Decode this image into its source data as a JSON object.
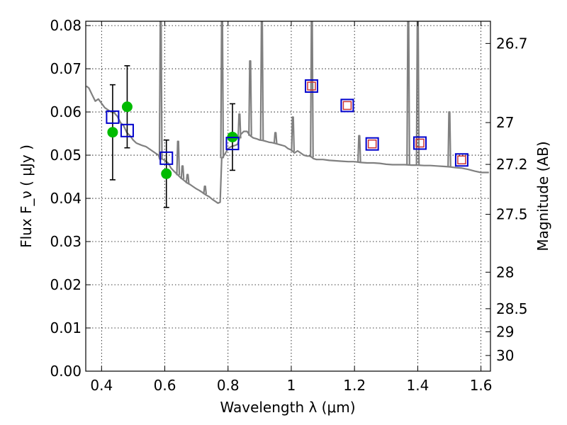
{
  "chart_data": {
    "type": "scatter",
    "xlabel": "Wavelength λ (μm)",
    "ylabel": "Flux F_ν ( μJy )",
    "y2label": "Magnitude (AB)",
    "xlim": [
      0.35,
      1.63
    ],
    "ylim": [
      0.0,
      0.081
    ],
    "grid": true,
    "x_ticks": [
      {
        "value": 0.4,
        "label": "0.4"
      },
      {
        "value": 0.6,
        "label": "0.6"
      },
      {
        "value": 0.8,
        "label": "0.8"
      },
      {
        "value": 1.0,
        "label": "1"
      },
      {
        "value": 1.2,
        "label": "1.2"
      },
      {
        "value": 1.4,
        "label": "1.4"
      },
      {
        "value": 1.6,
        "label": "1.6"
      }
    ],
    "y_ticks": [
      {
        "value": 0.0,
        "label": "0.00"
      },
      {
        "value": 0.01,
        "label": "0.01"
      },
      {
        "value": 0.02,
        "label": "0.02"
      },
      {
        "value": 0.03,
        "label": "0.03"
      },
      {
        "value": 0.04,
        "label": "0.04"
      },
      {
        "value": 0.05,
        "label": "0.05"
      },
      {
        "value": 0.06,
        "label": "0.06"
      },
      {
        "value": 0.07,
        "label": "0.07"
      },
      {
        "value": 0.08,
        "label": "0.08"
      }
    ],
    "y2_ticks": [
      {
        "value": 26.7,
        "label": "26.7"
      },
      {
        "value": 27.0,
        "label": "27"
      },
      {
        "value": 27.2,
        "label": "27.2"
      },
      {
        "value": 27.5,
        "label": "27.5"
      },
      {
        "value": 28.0,
        "label": "28"
      },
      {
        "value": 28.5,
        "label": "28.5"
      },
      {
        "value": 29.0,
        "label": "29"
      },
      {
        "value": 30.0,
        "label": "30"
      }
    ],
    "colors": {
      "model": "#808080",
      "observed": "#00bb00",
      "model_box": "#0000cc",
      "inner_box": "#cc3333",
      "errorbar": "#000000"
    },
    "model_spectrum": [
      [
        0.352,
        0.066
      ],
      [
        0.36,
        0.0655
      ],
      [
        0.37,
        0.064
      ],
      [
        0.38,
        0.0625
      ],
      [
        0.39,
        0.063
      ],
      [
        0.4,
        0.062
      ],
      [
        0.41,
        0.061
      ],
      [
        0.42,
        0.0605
      ],
      [
        0.43,
        0.06
      ],
      [
        0.44,
        0.0598
      ],
      [
        0.45,
        0.059
      ],
      [
        0.46,
        0.0575
      ],
      [
        0.47,
        0.0568
      ],
      [
        0.48,
        0.0552
      ],
      [
        0.49,
        0.0545
      ],
      [
        0.5,
        0.0535
      ],
      [
        0.51,
        0.0528
      ],
      [
        0.52,
        0.0525
      ],
      [
        0.53,
        0.0522
      ],
      [
        0.54,
        0.052
      ],
      [
        0.55,
        0.0515
      ],
      [
        0.56,
        0.051
      ],
      [
        0.57,
        0.0505
      ],
      [
        0.58,
        0.05
      ],
      [
        0.585,
        0.049
      ],
      [
        0.59,
        0.0492
      ],
      [
        0.6,
        0.0488
      ],
      [
        0.61,
        0.0482
      ],
      [
        0.62,
        0.047
      ],
      [
        0.63,
        0.0462
      ],
      [
        0.64,
        0.0455
      ],
      [
        0.65,
        0.0448
      ],
      [
        0.66,
        0.0442
      ],
      [
        0.67,
        0.0436
      ],
      [
        0.68,
        0.0432
      ],
      [
        0.69,
        0.0427
      ],
      [
        0.7,
        0.0422
      ],
      [
        0.71,
        0.0418
      ],
      [
        0.72,
        0.0413
      ],
      [
        0.73,
        0.0408
      ],
      [
        0.74,
        0.0404
      ],
      [
        0.75,
        0.0398
      ],
      [
        0.76,
        0.0393
      ],
      [
        0.768,
        0.0389
      ],
      [
        0.775,
        0.0391
      ],
      [
        0.78,
        0.0492
      ],
      [
        0.79,
        0.0502
      ],
      [
        0.8,
        0.0515
      ],
      [
        0.81,
        0.052
      ],
      [
        0.82,
        0.0522
      ],
      [
        0.83,
        0.0525
      ],
      [
        0.84,
        0.0548
      ],
      [
        0.85,
        0.0555
      ],
      [
        0.86,
        0.0555
      ],
      [
        0.87,
        0.0545
      ],
      [
        0.88,
        0.054
      ],
      [
        0.89,
        0.0538
      ],
      [
        0.9,
        0.0535
      ],
      [
        0.91,
        0.0534
      ],
      [
        0.92,
        0.0532
      ],
      [
        0.93,
        0.053
      ],
      [
        0.94,
        0.0529
      ],
      [
        0.95,
        0.0527
      ],
      [
        0.96,
        0.0525
      ],
      [
        0.97,
        0.0523
      ],
      [
        0.98,
        0.0521
      ],
      [
        0.99,
        0.0515
      ],
      [
        1.0,
        0.0512
      ],
      [
        1.01,
        0.0505
      ],
      [
        1.02,
        0.051
      ],
      [
        1.03,
        0.0505
      ],
      [
        1.04,
        0.05
      ],
      [
        1.05,
        0.0498
      ],
      [
        1.06,
        0.0498
      ],
      [
        1.07,
        0.0492
      ],
      [
        1.08,
        0.049
      ],
      [
        1.1,
        0.049
      ],
      [
        1.12,
        0.0488
      ],
      [
        1.14,
        0.0487
      ],
      [
        1.16,
        0.0486
      ],
      [
        1.18,
        0.0485
      ],
      [
        1.2,
        0.0485
      ],
      [
        1.22,
        0.0483
      ],
      [
        1.24,
        0.0482
      ],
      [
        1.26,
        0.0482
      ],
      [
        1.28,
        0.0481
      ],
      [
        1.3,
        0.0479
      ],
      [
        1.32,
        0.0478
      ],
      [
        1.34,
        0.0478
      ],
      [
        1.36,
        0.0478
      ],
      [
        1.38,
        0.0477
      ],
      [
        1.4,
        0.0477
      ],
      [
        1.42,
        0.0476
      ],
      [
        1.44,
        0.0476
      ],
      [
        1.46,
        0.0475
      ],
      [
        1.48,
        0.0474
      ],
      [
        1.5,
        0.0473
      ],
      [
        1.52,
        0.0471
      ],
      [
        1.54,
        0.047
      ],
      [
        1.56,
        0.0467
      ],
      [
        1.58,
        0.0463
      ],
      [
        1.6,
        0.046
      ],
      [
        1.625,
        0.046
      ]
    ],
    "emission_lines": [
      {
        "x": 0.587,
        "peak": 0.081
      },
      {
        "x": 0.642,
        "peak": 0.0532
      },
      {
        "x": 0.656,
        "peak": 0.0475
      },
      {
        "x": 0.672,
        "peak": 0.0455
      },
      {
        "x": 0.727,
        "peak": 0.0428
      },
      {
        "x": 0.781,
        "peak": 0.081
      },
      {
        "x": 0.836,
        "peak": 0.0595
      },
      {
        "x": 0.87,
        "peak": 0.0718
      },
      {
        "x": 0.907,
        "peak": 0.081
      },
      {
        "x": 0.95,
        "peak": 0.0552
      },
      {
        "x": 1.005,
        "peak": 0.0588
      },
      {
        "x": 1.065,
        "peak": 0.081
      },
      {
        "x": 1.215,
        "peak": 0.0545
      },
      {
        "x": 1.37,
        "peak": 0.081
      },
      {
        "x": 1.4,
        "peak": 0.081
      },
      {
        "x": 1.5,
        "peak": 0.06
      }
    ],
    "observed_points": [
      {
        "x": 0.435,
        "y": 0.0553,
        "err": 0.011
      },
      {
        "x": 0.481,
        "y": 0.0612,
        "err": 0.0095
      },
      {
        "x": 0.605,
        "y": 0.0457,
        "err": 0.0078
      },
      {
        "x": 0.814,
        "y": 0.0542,
        "err": 0.0077
      }
    ],
    "model_photometry": [
      {
        "x": 0.435,
        "y": 0.0588
      },
      {
        "x": 0.481,
        "y": 0.0557
      },
      {
        "x": 0.605,
        "y": 0.0493
      },
      {
        "x": 0.814,
        "y": 0.0527
      }
    ],
    "nir_photometry": [
      {
        "x": 1.064,
        "y": 0.066
      },
      {
        "x": 1.177,
        "y": 0.0615
      },
      {
        "x": 1.256,
        "y": 0.0526
      },
      {
        "x": 1.407,
        "y": 0.0528
      },
      {
        "x": 1.539,
        "y": 0.0489
      }
    ]
  }
}
